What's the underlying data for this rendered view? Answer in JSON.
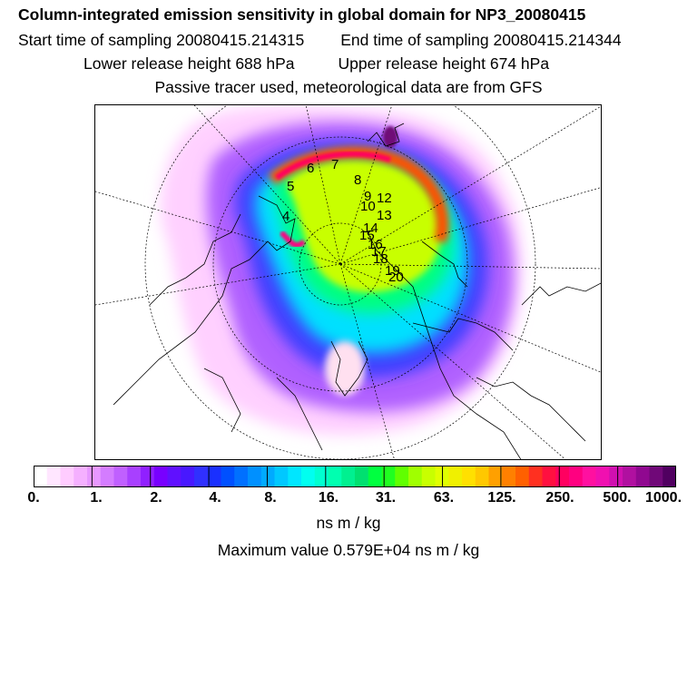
{
  "header": {
    "title": "Column-integrated emission sensitivity in global domain for NP3_20080415",
    "start_label": "Start time of sampling 20080415.214315",
    "end_label": "End time of sampling 20080415.214344",
    "lower_label": "Lower release height  688 hPa",
    "upper_label": "Upper release height  674 hPa",
    "tracer_label": "Passive tracer used, meteorological data are from GFS"
  },
  "chart_data": {
    "type": "heatmap",
    "title": "Column-integrated emission sensitivity in global domain for NP3_20080415",
    "projection": "polar stereographic (north pole)",
    "colorbar": {
      "ticks": [
        "0.",
        "1.",
        "2.",
        "4.",
        "8.",
        "16.",
        "31.",
        "63.",
        "125.",
        "250.",
        "500.",
        "1000."
      ],
      "units": "ns m / kg",
      "colors": [
        "#ffffff",
        "#ffe6ff",
        "#ffccff",
        "#f5b0ff",
        "#e898ff",
        "#d47cff",
        "#c060ff",
        "#a840ff",
        "#9020ff",
        "#7800ff",
        "#6010ff",
        "#4818ff",
        "#3030ff",
        "#1a30ff",
        "#0050ff",
        "#0070ff",
        "#0090ff",
        "#00aaff",
        "#00c8ff",
        "#00e6ff",
        "#00fff0",
        "#00ffd0",
        "#00ffb0",
        "#00f090",
        "#00e070",
        "#00ff40",
        "#20ff20",
        "#60ff00",
        "#a0ff00",
        "#c8ff00",
        "#e0ff00",
        "#f0f000",
        "#ffe000",
        "#ffc800",
        "#ffa000",
        "#ff8000",
        "#ff6000",
        "#ff3020",
        "#ff1040",
        "#ff0060",
        "#ff0080",
        "#ff10a0",
        "#f010b0",
        "#d010b0",
        "#b010a0",
        "#900890",
        "#700878",
        "#500060"
      ]
    },
    "max_value": {
      "label": "Maximum value  0.579E+04 ns m / kg",
      "value": 5790,
      "units": "ns m / kg"
    },
    "trajectory_labels": [
      "4",
      "5",
      "6",
      "7",
      "8",
      "9",
      "10",
      "12",
      "13",
      "14",
      "15",
      "16",
      "17",
      "18",
      "19",
      "20"
    ]
  }
}
